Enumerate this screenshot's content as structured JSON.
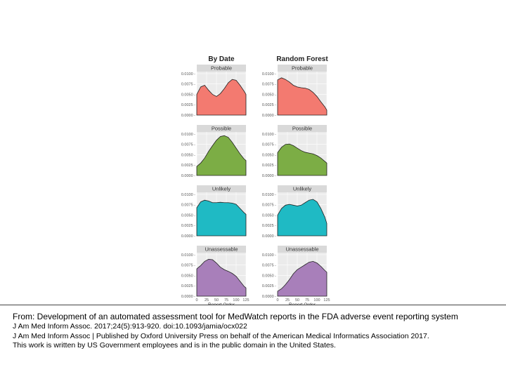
{
  "chart_data": {
    "type": "area",
    "columns": [
      "By Date",
      "Random Forest"
    ],
    "panels": [
      "Probable",
      "Possible",
      "Unlikely",
      "Unassessable"
    ],
    "colors": {
      "Probable": "#f37a70",
      "Possible": "#7cad45",
      "Unlikely": "#1fbac4",
      "Unassessable": "#a87fba"
    },
    "xlabel": "Report Order",
    "x_ticks": [
      0,
      25,
      50,
      75,
      100,
      125
    ],
    "xlim": [
      0,
      125
    ],
    "y_ticks": [
      "0.0000",
      "0.0025",
      "0.0050",
      "0.0075",
      "0.0100"
    ],
    "ylim": [
      0,
      0.0105
    ],
    "x": [
      0,
      10,
      20,
      30,
      40,
      50,
      60,
      70,
      80,
      90,
      100,
      110,
      120,
      125
    ],
    "series": [
      {
        "column": "By Date",
        "panel": "Probable",
        "values": [
          0.005,
          0.0068,
          0.0072,
          0.006,
          0.005,
          0.0045,
          0.0052,
          0.0064,
          0.0078,
          0.0086,
          0.0084,
          0.0072,
          0.0058,
          0.005
        ]
      },
      {
        "column": "Random Forest",
        "panel": "Probable",
        "values": [
          0.0085,
          0.009,
          0.0086,
          0.008,
          0.0072,
          0.0068,
          0.0066,
          0.0065,
          0.0062,
          0.0055,
          0.0045,
          0.0032,
          0.002,
          0.0012
        ]
      },
      {
        "column": "By Date",
        "panel": "Possible",
        "values": [
          0.0022,
          0.003,
          0.0042,
          0.0058,
          0.0072,
          0.0085,
          0.0094,
          0.0096,
          0.0092,
          0.008,
          0.0066,
          0.0052,
          0.004,
          0.0036
        ]
      },
      {
        "column": "Random Forest",
        "panel": "Possible",
        "values": [
          0.0055,
          0.0068,
          0.0075,
          0.0076,
          0.0072,
          0.0066,
          0.006,
          0.0056,
          0.0054,
          0.0052,
          0.0048,
          0.0042,
          0.0034,
          0.003
        ]
      },
      {
        "column": "By Date",
        "panel": "Unlikely",
        "values": [
          0.0068,
          0.0082,
          0.0086,
          0.0084,
          0.008,
          0.008,
          0.0081,
          0.008,
          0.008,
          0.0079,
          0.0076,
          0.0066,
          0.0056,
          0.0052
        ]
      },
      {
        "column": "Random Forest",
        "panel": "Unlikely",
        "values": [
          0.005,
          0.0066,
          0.0074,
          0.0076,
          0.0074,
          0.0072,
          0.0074,
          0.008,
          0.0086,
          0.0088,
          0.0082,
          0.0066,
          0.0045,
          0.003
        ]
      },
      {
        "column": "By Date",
        "panel": "Unassessable",
        "values": [
          0.0066,
          0.0074,
          0.0084,
          0.0089,
          0.0088,
          0.008,
          0.007,
          0.0064,
          0.006,
          0.0055,
          0.0048,
          0.0036,
          0.0024,
          0.002
        ]
      },
      {
        "column": "Random Forest",
        "panel": "Unassessable",
        "values": [
          0.0012,
          0.0018,
          0.0028,
          0.004,
          0.0054,
          0.0064,
          0.007,
          0.0076,
          0.0082,
          0.0084,
          0.008,
          0.0072,
          0.0062,
          0.0058
        ]
      }
    ]
  },
  "caption": {
    "from": "From: Development of an automated assessment tool for MedWatch reports in the FDA adverse event reporting system",
    "citation": "J Am Med Inform Assoc. 2017;24(5):913-920. doi:10.1093/jamia/ocx022",
    "publisher": "J Am Med Inform Assoc | Published by Oxford University Press on behalf of the American Medical Informatics Association 2017.",
    "license": "This work is written by US Government employees and is in the public domain in the United States."
  }
}
